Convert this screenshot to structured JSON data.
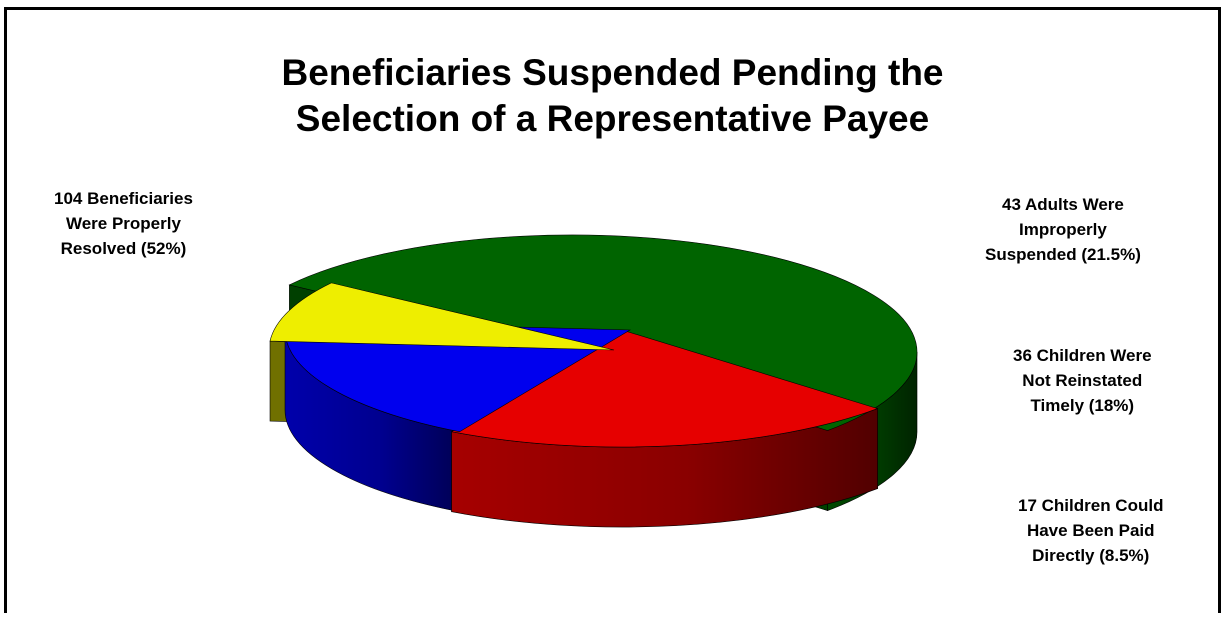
{
  "chart_data": {
    "type": "pie",
    "title": [
      "Beneficiaries Suspended Pending the",
      "Selection of a Representative Payee"
    ],
    "slices": [
      {
        "label": [
          "104 Beneficiaries",
          "Were Properly",
          "Resolved  (52%)"
        ],
        "value": 104,
        "percent": 52,
        "color": "#006400"
      },
      {
        "label": [
          "43 Adults Were",
          "Improperly",
          "Suspended  (21.5%)"
        ],
        "value": 43,
        "percent": 21.5,
        "color": "#e60000"
      },
      {
        "label": [
          "36 Children Were",
          "Not Reinstated",
          "Timely (18%)"
        ],
        "value": 36,
        "percent": 18,
        "color": "#0000ee"
      },
      {
        "label": [
          "17 Children Could",
          "Have Been Paid",
          "Directly  (8.5%)"
        ],
        "value": 17,
        "percent": 8.5,
        "color": "#eeee00"
      }
    ],
    "three_d": true,
    "exploded": true,
    "legend": "none"
  }
}
